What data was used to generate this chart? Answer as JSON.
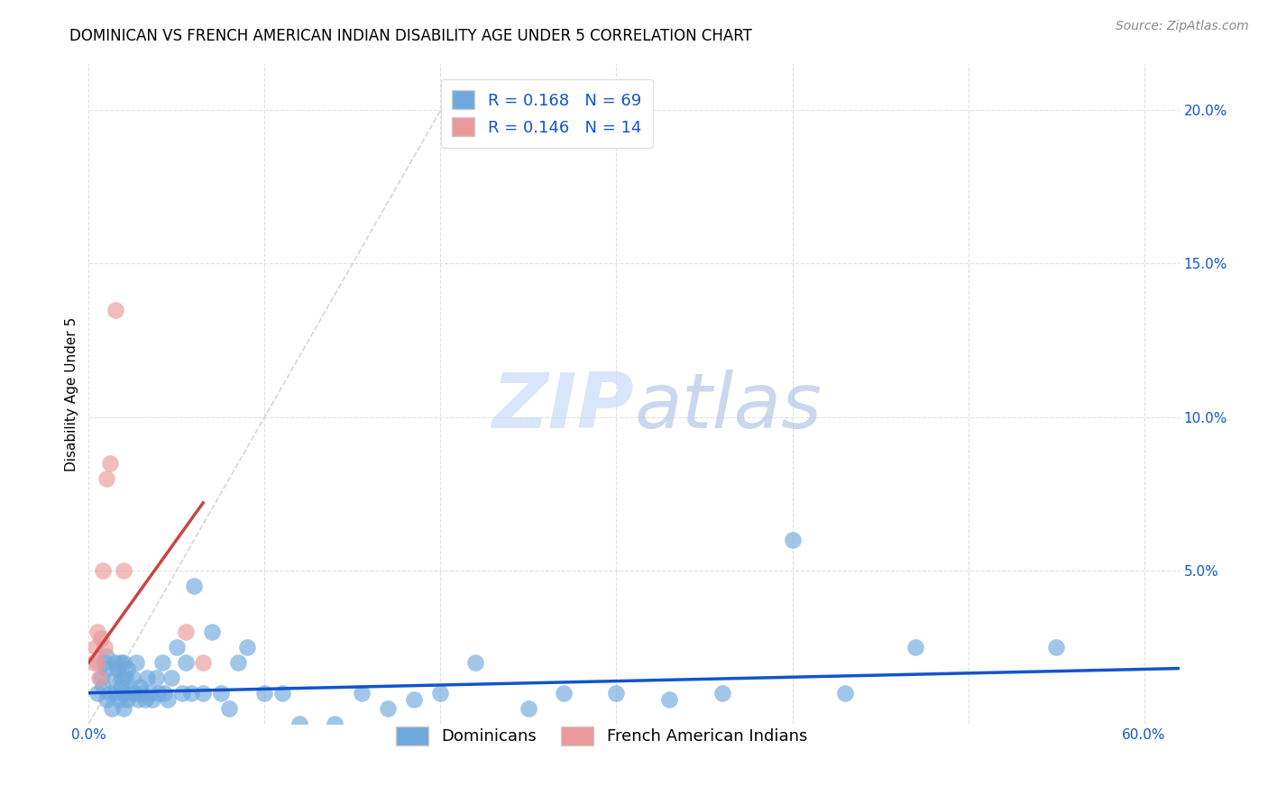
{
  "title": "DOMINICAN VS FRENCH AMERICAN INDIAN DISABILITY AGE UNDER 5 CORRELATION CHART",
  "source": "Source: ZipAtlas.com",
  "ylabel": "Disability Age Under 5",
  "watermark": "ZIPatlas",
  "xlim": [
    0.0,
    0.62
  ],
  "ylim": [
    0.0,
    0.215
  ],
  "xticks_major": [
    0.0,
    0.1,
    0.2,
    0.3,
    0.4,
    0.5,
    0.6
  ],
  "xtick_labels_show": [
    "0.0%",
    "",
    "",
    "",
    "",
    "",
    "60.0%"
  ],
  "yticks": [
    0.0,
    0.05,
    0.1,
    0.15,
    0.2
  ],
  "ytick_labels": [
    "",
    "5.0%",
    "10.0%",
    "15.0%",
    "20.0%"
  ],
  "blue_color": "#6fa8dc",
  "pink_color": "#ea9999",
  "blue_line_color": "#1155cc",
  "pink_line_color": "#cc4444",
  "diagonal_color": "#cccccc",
  "R_blue": 0.168,
  "N_blue": 69,
  "R_pink": 0.146,
  "N_pink": 14,
  "legend_label_blue": "Dominicans",
  "legend_label_pink": "French American Indians",
  "blue_scatter_x": [
    0.005,
    0.007,
    0.008,
    0.009,
    0.01,
    0.01,
    0.01,
    0.012,
    0.013,
    0.015,
    0.015,
    0.015,
    0.016,
    0.017,
    0.018,
    0.018,
    0.019,
    0.02,
    0.02,
    0.02,
    0.021,
    0.022,
    0.022,
    0.023,
    0.025,
    0.026,
    0.027,
    0.028,
    0.029,
    0.03,
    0.032,
    0.033,
    0.035,
    0.036,
    0.038,
    0.04,
    0.042,
    0.043,
    0.045,
    0.047,
    0.05,
    0.053,
    0.055,
    0.058,
    0.06,
    0.065,
    0.07,
    0.075,
    0.08,
    0.085,
    0.09,
    0.1,
    0.11,
    0.12,
    0.14,
    0.155,
    0.17,
    0.185,
    0.2,
    0.22,
    0.25,
    0.27,
    0.3,
    0.33,
    0.36,
    0.4,
    0.43,
    0.47,
    0.55
  ],
  "blue_scatter_y": [
    0.01,
    0.015,
    0.012,
    0.02,
    0.008,
    0.018,
    0.022,
    0.01,
    0.005,
    0.015,
    0.02,
    0.01,
    0.018,
    0.008,
    0.012,
    0.02,
    0.015,
    0.01,
    0.005,
    0.02,
    0.015,
    0.008,
    0.018,
    0.01,
    0.015,
    0.01,
    0.02,
    0.008,
    0.012,
    0.01,
    0.008,
    0.015,
    0.01,
    0.008,
    0.015,
    0.01,
    0.02,
    0.01,
    0.008,
    0.015,
    0.025,
    0.01,
    0.02,
    0.01,
    0.045,
    0.01,
    0.03,
    0.01,
    0.005,
    0.02,
    0.025,
    0.01,
    0.01,
    0.0,
    0.0,
    0.01,
    0.005,
    0.008,
    0.01,
    0.02,
    0.005,
    0.01,
    0.01,
    0.008,
    0.01,
    0.06,
    0.01,
    0.025,
    0.025
  ],
  "pink_scatter_x": [
    0.003,
    0.004,
    0.005,
    0.005,
    0.006,
    0.007,
    0.008,
    0.009,
    0.01,
    0.012,
    0.015,
    0.02,
    0.055,
    0.065
  ],
  "pink_scatter_y": [
    0.02,
    0.025,
    0.02,
    0.03,
    0.015,
    0.028,
    0.05,
    0.025,
    0.08,
    0.085,
    0.135,
    0.05,
    0.03,
    0.02
  ],
  "blue_trend_x": [
    0.0,
    0.62
  ],
  "blue_trend_y": [
    0.01,
    0.018
  ],
  "pink_trend_x": [
    0.0,
    0.065
  ],
  "pink_trend_y": [
    0.02,
    0.072
  ],
  "background_color": "#ffffff",
  "grid_color": "#e0e0e0",
  "title_fontsize": 12,
  "axis_label_fontsize": 11,
  "tick_fontsize": 11,
  "legend_fontsize": 13,
  "source_fontsize": 10
}
